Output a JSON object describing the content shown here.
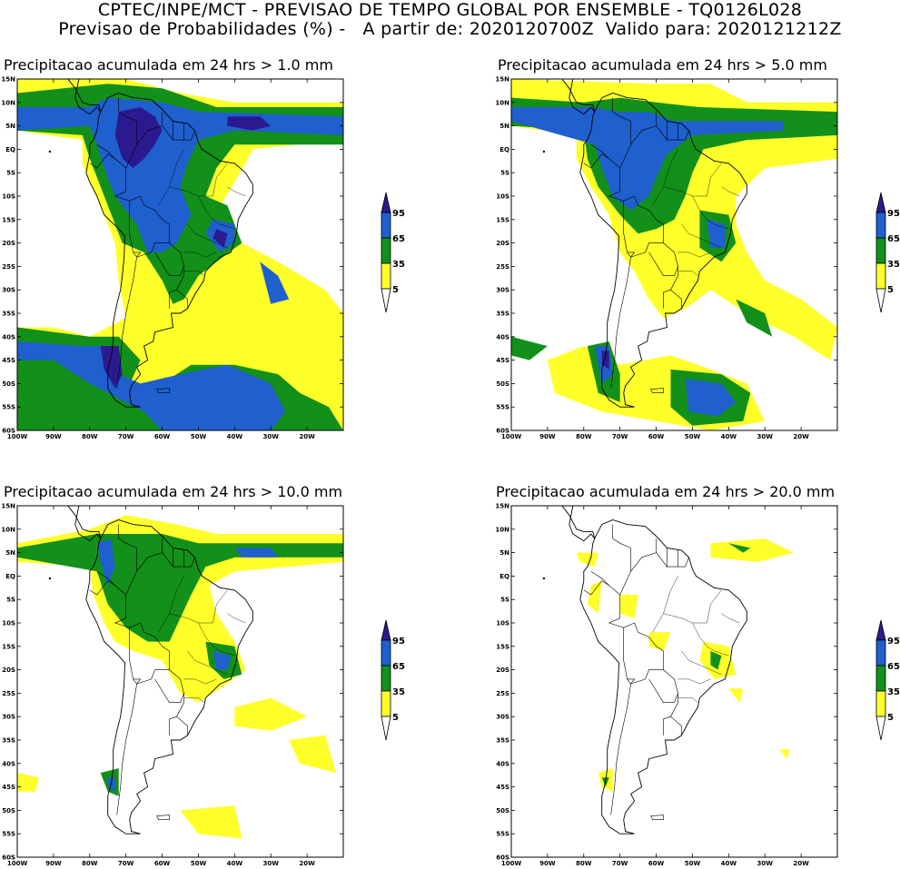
{
  "header": {
    "line1": "CPTEC/INPE/MCT - PREVISAO DE TEMPO GLOBAL POR ENSEMBLE - TQ0126L028",
    "line2": "Previsao de Probabilidades (%) -   A partir de: 2020120700Z  Valido para: 2020121212Z"
  },
  "panels": [
    {
      "title": "Precipitacao acumulada em 24 hrs > 1.0 mm",
      "threshold_mm": 1.0
    },
    {
      "title": "Precipitacao acumulada em 24 hrs > 5.0 mm",
      "threshold_mm": 5.0
    },
    {
      "title": "Precipitacao acumulada em 24 hrs > 10.0 mm",
      "threshold_mm": 10.0
    },
    {
      "title": "Precipitacao acumulada em 24 hrs > 20.0 mm",
      "threshold_mm": 20.0
    }
  ],
  "map": {
    "lat_labels": [
      "15N",
      "10N",
      "5N",
      "EQ",
      "5S",
      "10S",
      "15S",
      "20S",
      "25S",
      "30S",
      "35S",
      "40S",
      "45S",
      "50S",
      "55S",
      "60S"
    ],
    "lon_labels": [
      "100W",
      "90W",
      "80W",
      "70W",
      "60W",
      "50W",
      "40W",
      "30W",
      "20W"
    ]
  },
  "colorbar": {
    "labels": [
      "95",
      "65",
      "35",
      "5"
    ],
    "colors": [
      "#2b1a8f",
      "#1f5fce",
      "#13901a",
      "#ffff2a",
      "#ffffff"
    ]
  }
}
